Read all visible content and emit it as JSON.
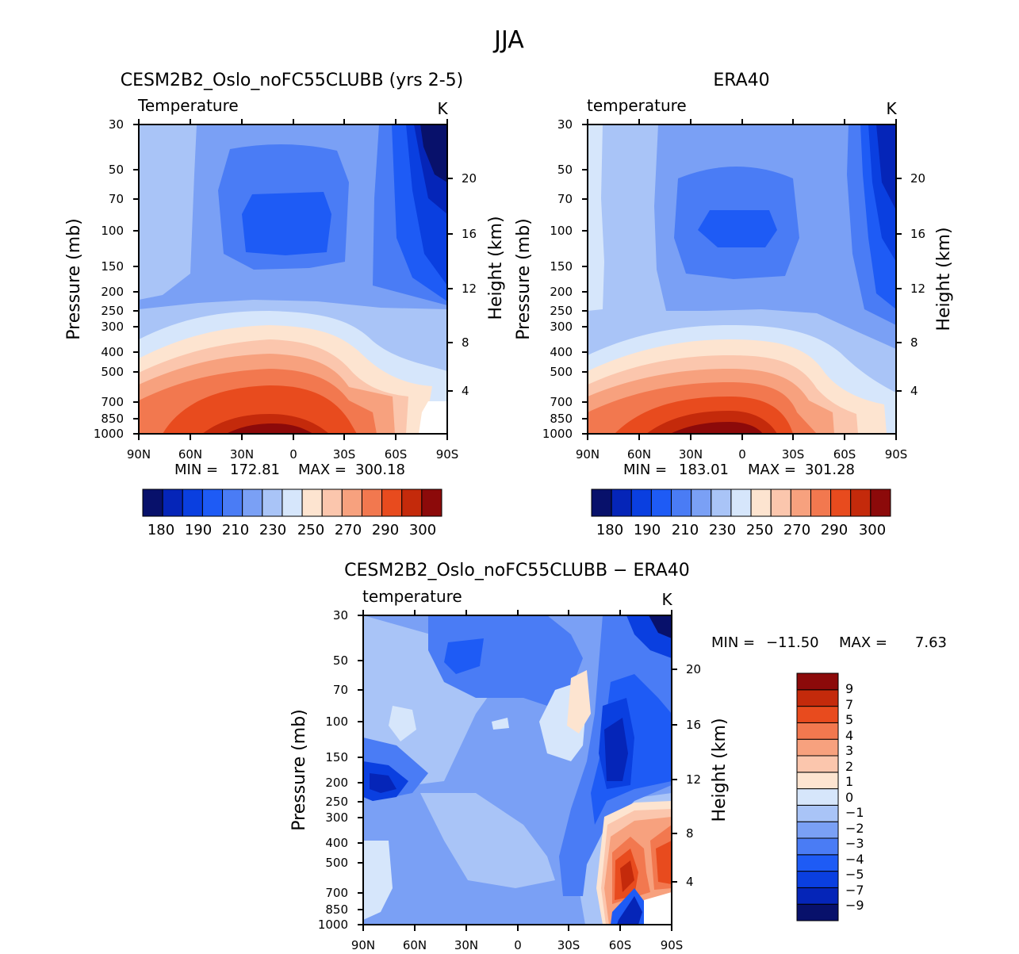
{
  "page_title": "JJA",
  "colors": {
    "abs_scale": [
      "#08116b",
      "#0525b8",
      "#0a3fe0",
      "#1e5bf5",
      "#4a7cf5",
      "#7aa0f5",
      "#a9c4f7",
      "#d6e6fb",
      "#fde4d0",
      "#fbc6ad",
      "#f7a17e",
      "#f2784f",
      "#e84b1e",
      "#c42a0b",
      "#8c0a0a"
    ],
    "diff_scale": [
      "#08116b",
      "#0525b8",
      "#0a3fe0",
      "#1e5bf5",
      "#4a7cf5",
      "#7aa0f5",
      "#a9c4f7",
      "#d6e6fb",
      "#fde4d0",
      "#fbc6ad",
      "#f7a17e",
      "#f2784f",
      "#e84b1e",
      "#c42a0b",
      "#8c0a0a"
    ]
  },
  "chart_data": [
    {
      "type": "heatmap",
      "title": "CESM2B2_Oslo_noFC55CLUBB (yrs 2-5)",
      "subtitle": "Temperature",
      "units": "K",
      "xlabel": "",
      "ylabel": "Pressure (mb)",
      "y2label": "Height (km)",
      "x_tick_labels": [
        "90N",
        "60N",
        "30N",
        "0",
        "30S",
        "60S",
        "90S"
      ],
      "y_tick_labels": [
        "30",
        "50",
        "70",
        "100",
        "150",
        "200",
        "250",
        "300",
        "400",
        "500",
        "700",
        "850",
        "1000"
      ],
      "height_ticks": [
        "20",
        "16",
        "12",
        "8",
        "4"
      ],
      "stats": {
        "min_label": "MIN =",
        "min": "172.81",
        "max_label": "MAX =",
        "max": "300.18"
      },
      "colorbar_labels": [
        "180",
        "190",
        "210",
        "230",
        "250",
        "270",
        "290",
        "300"
      ]
    },
    {
      "type": "heatmap",
      "title": "ERA40",
      "subtitle": "temperature",
      "units": "K",
      "xlabel": "",
      "ylabel": "Pressure (mb)",
      "y2label": "Height (km)",
      "x_tick_labels": [
        "90N",
        "60N",
        "30N",
        "0",
        "30S",
        "60S",
        "90S"
      ],
      "y_tick_labels": [
        "30",
        "50",
        "70",
        "100",
        "150",
        "200",
        "250",
        "300",
        "400",
        "500",
        "700",
        "850",
        "1000"
      ],
      "height_ticks": [
        "20",
        "16",
        "12",
        "8",
        "4"
      ],
      "stats": {
        "min_label": "MIN =",
        "min": "183.01",
        "max_label": "MAX =",
        "max": "301.28"
      },
      "colorbar_labels": [
        "180",
        "190",
        "210",
        "230",
        "250",
        "270",
        "290",
        "300"
      ]
    },
    {
      "type": "heatmap",
      "title": "CESM2B2_Oslo_noFC55CLUBB − ERA40",
      "subtitle": "temperature",
      "units": "K",
      "xlabel": "",
      "ylabel": "Pressure (mb)",
      "y2label": "Height (km)",
      "x_tick_labels": [
        "90N",
        "60N",
        "30N",
        "0",
        "30S",
        "60S",
        "90S"
      ],
      "y_tick_labels": [
        "30",
        "50",
        "70",
        "100",
        "150",
        "200",
        "250",
        "300",
        "400",
        "500",
        "700",
        "850",
        "1000"
      ],
      "height_ticks": [
        "20",
        "16",
        "12",
        "8",
        "4"
      ],
      "stats": {
        "min_label": "MIN =",
        "min": "−11.50",
        "max_label": "MAX =",
        "max": "7.63"
      },
      "colorbar_labels": [
        "9",
        "7",
        "5",
        "4",
        "3",
        "2",
        "1",
        "0",
        "−1",
        "−2",
        "−3",
        "−4",
        "−5",
        "−7",
        "−9"
      ]
    }
  ]
}
